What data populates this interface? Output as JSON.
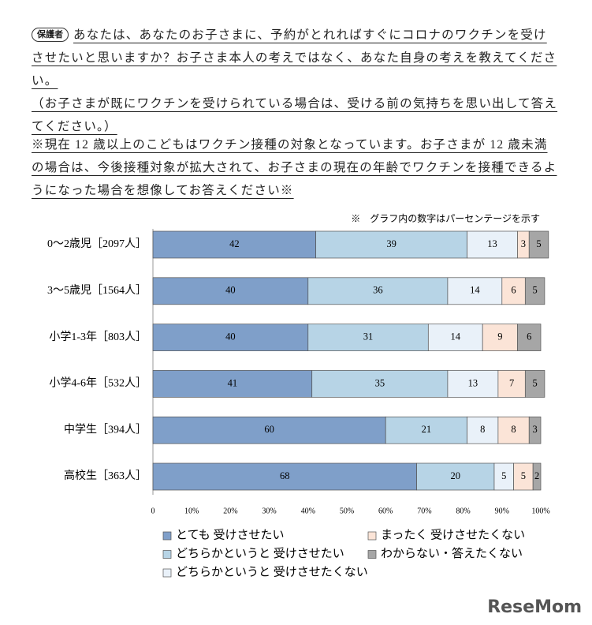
{
  "header": {
    "badge": "保護者",
    "question": "あなたは、あなたのお子さまに、予約がとれればすぐにコロナのワクチンを受けさせたいと思いますか？お子さま本人の考えではなく、あなた自身の考えを教えてください。",
    "question_note": "（お子さまが既にワクチンを受けられている場合は、受ける前の気持ちを思い出して答えてください。）",
    "condition": "※現在 12 歳以上のこどもはワクチン接種の対象となっています。お子さまが 12 歳未満の場合は、今後接種対象が拡大されて、お子さまの現在の年齢でワクチンを接種できるようになった場合を想像してお答えください※"
  },
  "chart_data": {
    "type": "stacked-barh",
    "note": "※　グラフ内の数字はパーセンテージを示す",
    "categories": [
      "0～2歳児［2097人］",
      "3～5歳児［1564人］",
      "小学1-3年［803人］",
      "小学4-6年［532人］",
      "中学生［394人］",
      "高校生［363人］"
    ],
    "series": [
      {
        "name": "とても 受けさせたい",
        "color": "#7f9fc9",
        "values": [
          42,
          40,
          40,
          41,
          60,
          68
        ]
      },
      {
        "name": "どちらかというと 受けさせたい",
        "color": "#b7d4e6",
        "values": [
          39,
          36,
          31,
          35,
          21,
          20
        ]
      },
      {
        "name": "どちらかというと 受けさせたくない",
        "color": "#e9f1f9",
        "values": [
          13,
          14,
          14,
          13,
          8,
          5
        ]
      },
      {
        "name": "まったく 受けさせたくない",
        "color": "#fbe4d7",
        "values": [
          3,
          6,
          9,
          7,
          8,
          5
        ]
      },
      {
        "name": "わからない・答えたくない",
        "color": "#a6a6a6",
        "values": [
          5,
          5,
          6,
          5,
          3,
          2
        ]
      }
    ],
    "xlim": [
      0,
      100
    ],
    "xticks": [
      0,
      {
        "value": 10,
        "label": "10%"
      },
      {
        "value": 20,
        "label": "20%"
      },
      {
        "value": 30,
        "label": "30%"
      },
      {
        "value": 40,
        "label": "40%"
      },
      {
        "value": 50,
        "label": "50%"
      },
      {
        "value": 60,
        "label": "60%"
      },
      {
        "value": 70,
        "label": "70%"
      },
      {
        "value": 80,
        "label": "80%"
      },
      {
        "value": 90,
        "label": "90%"
      },
      {
        "value": 100,
        "label": "100%"
      }
    ]
  },
  "watermark": "ReseMom"
}
